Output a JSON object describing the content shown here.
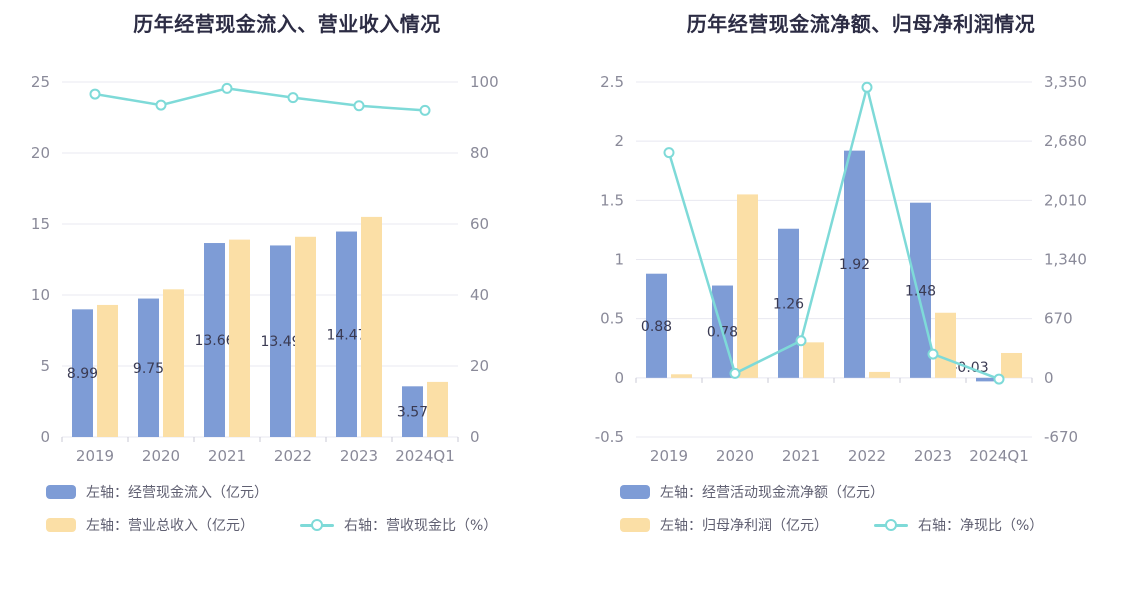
{
  "colors": {
    "background": "#ffffff",
    "grid": "#e8e8f0",
    "axis_text": "#8a8a99",
    "axis_tick": "#c8c8d4",
    "title_text": "#2c2c44",
    "value_label": "#3a3a52",
    "legend_text": "#606072",
    "bar_blue": "#7e9cd6",
    "bar_yellow": "#fbdfa6",
    "line_cyan": "#7edad8"
  },
  "chart_data": [
    {
      "type": "bar",
      "title": "历年经营现金流入、营业收入情况",
      "categories": [
        "2019",
        "2020",
        "2021",
        "2022",
        "2023",
        "2024Q1"
      ],
      "left_axis": {
        "min": 0,
        "max": 25,
        "tick_labels": [
          "25",
          "20",
          "15",
          "10",
          "5",
          "0"
        ]
      },
      "right_axis": {
        "min": 0,
        "max": 100,
        "tick_labels": [
          "100",
          "80",
          "60",
          "40",
          "20",
          "0"
        ]
      },
      "grid": true,
      "legend_position": "bottom",
      "series": [
        {
          "name": "左轴：经营现金流入（亿元）",
          "type": "bar",
          "axis": "left",
          "color": "#7e9cd6",
          "values": [
            8.99,
            9.75,
            13.66,
            13.49,
            14.47,
            3.57
          ],
          "labels": [
            "8.99",
            "9.75",
            "13.66",
            "13.49",
            "14.47",
            "3.57"
          ]
        },
        {
          "name": "左轴：营业总收入（亿元）",
          "type": "bar",
          "axis": "left",
          "color": "#fbdfa6",
          "values": [
            9.3,
            10.4,
            13.9,
            14.1,
            15.5,
            3.88
          ]
        },
        {
          "name": "右轴：营收现金比（%）",
          "type": "line",
          "axis": "right",
          "color": "#7edad8",
          "values": [
            96.6,
            93.5,
            98.2,
            95.6,
            93.3,
            92.0
          ]
        }
      ]
    },
    {
      "type": "bar",
      "title": "历年经营现金流净额、归母净利润情况",
      "categories": [
        "2019",
        "2020",
        "2021",
        "2022",
        "2023",
        "2024Q1"
      ],
      "left_axis": {
        "min": -0.5,
        "max": 2.5,
        "tick_labels": [
          "2.5",
          "2",
          "1.5",
          "1",
          "0.5",
          "0",
          "-0.5"
        ]
      },
      "right_axis": {
        "min": -670,
        "max": 3350,
        "tick_labels": [
          "3,350",
          "2,680",
          "2,010",
          "1,340",
          "670",
          "0",
          "-670"
        ]
      },
      "grid": true,
      "legend_position": "bottom",
      "series": [
        {
          "name": "左轴：经营活动现金流净额（亿元）",
          "type": "bar",
          "axis": "left",
          "color": "#7e9cd6",
          "values": [
            0.88,
            0.78,
            1.26,
            1.92,
            1.48,
            -0.03
          ],
          "labels": [
            "0.88",
            "0.78",
            "1.26",
            "1.92",
            "1.48",
            "-0.03"
          ]
        },
        {
          "name": "左轴：归母净利润（亿元）",
          "type": "bar",
          "axis": "left",
          "color": "#fbdfa6",
          "values": [
            0.03,
            1.55,
            0.3,
            0.05,
            0.55,
            0.21
          ]
        },
        {
          "name": "右轴：净现比（%）",
          "type": "line",
          "axis": "right",
          "color": "#7edad8",
          "values": [
            2550,
            50,
            420,
            3290,
            269,
            -14
          ]
        }
      ]
    }
  ]
}
